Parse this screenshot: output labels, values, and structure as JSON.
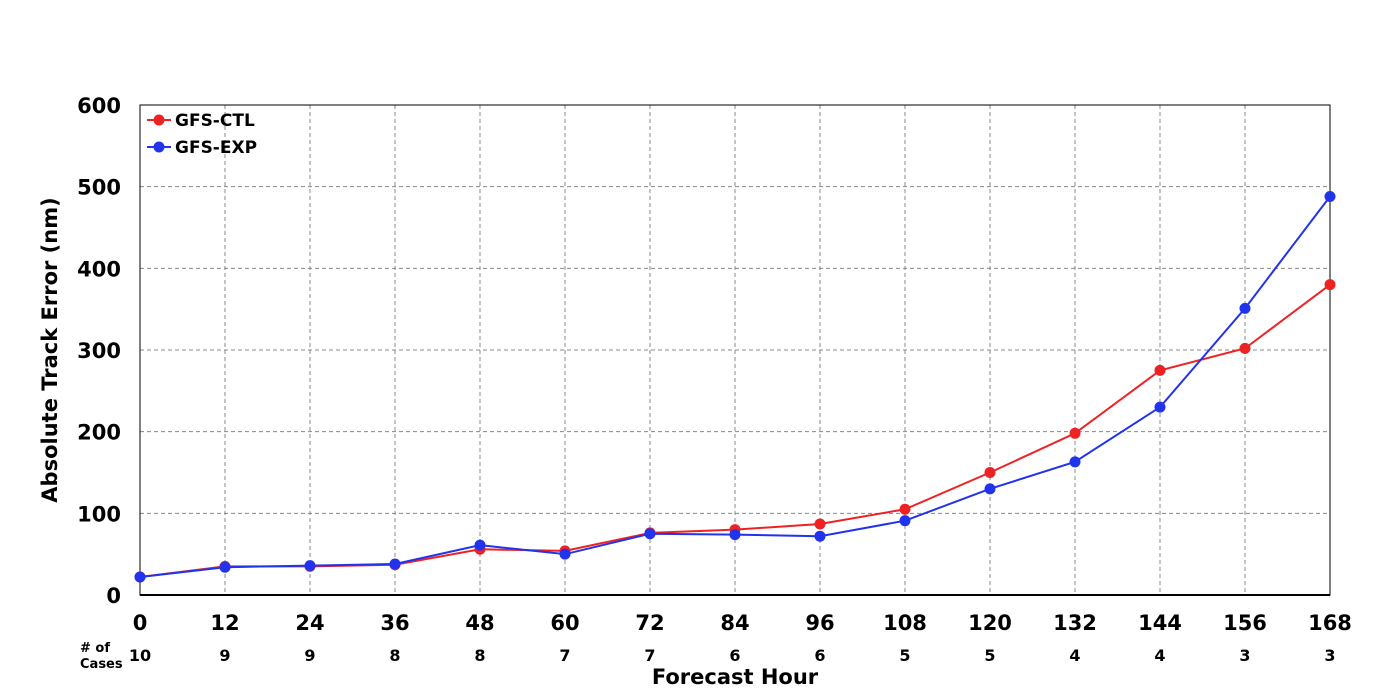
{
  "chart_data": {
    "type": "line",
    "xlabel": "Forecast Hour",
    "ylabel": "Absolute Track Error (nm)",
    "x": [
      0,
      12,
      24,
      36,
      48,
      60,
      72,
      84,
      96,
      108,
      120,
      132,
      144,
      156,
      168
    ],
    "xlim": [
      0,
      168
    ],
    "ylim": [
      0,
      600
    ],
    "yticks": [
      0,
      100,
      200,
      300,
      400,
      500,
      600
    ],
    "grid": true,
    "legend_position": "top-left",
    "cases_label": "# of Cases",
    "cases": [
      10,
      9,
      9,
      8,
      8,
      7,
      7,
      6,
      6,
      5,
      5,
      4,
      4,
      3,
      3
    ],
    "series": [
      {
        "name": "GFS-CTL",
        "color": "#ee2222",
        "values": [
          22,
          35,
          35,
          37,
          56,
          54,
          76,
          80,
          87,
          105,
          150,
          198,
          275,
          302,
          380
        ]
      },
      {
        "name": "GFS-EXP",
        "color": "#2233ee",
        "values": [
          22,
          34,
          36,
          38,
          61,
          50,
          75,
          74,
          72,
          91,
          130,
          163,
          230,
          351,
          488
        ]
      }
    ]
  }
}
